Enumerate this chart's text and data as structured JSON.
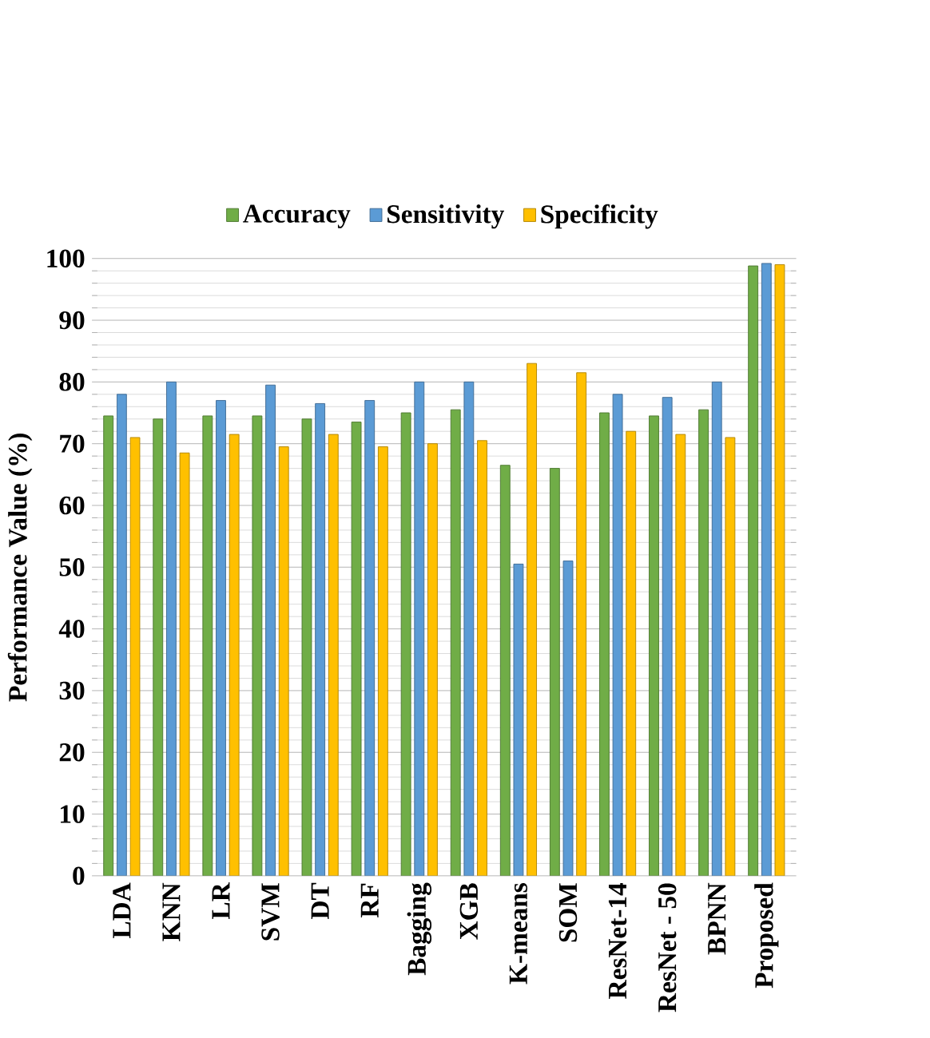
{
  "chart_data": {
    "type": "bar",
    "ylabel": "Performance Value (%)",
    "categories": [
      "LDA",
      "KNN",
      "LR",
      "SVM",
      "DT",
      "RF",
      "Bagging",
      "XGB",
      "K-means",
      "SOM",
      "ResNet-14",
      "ResNet - 50",
      "BPNN",
      "Proposed"
    ],
    "series": [
      {
        "name": "Accuracy",
        "color": "#70ad47",
        "values": [
          74.5,
          74,
          74.5,
          74.5,
          74,
          73.5,
          75,
          75.5,
          66.5,
          66,
          75,
          74.5,
          75.5,
          98.8
        ]
      },
      {
        "name": "Sensitivity",
        "color": "#5b9bd5",
        "values": [
          78,
          80,
          77,
          79.5,
          76.5,
          77,
          80,
          80,
          50.5,
          51,
          78,
          77.5,
          80,
          99.2
        ]
      },
      {
        "name": "Specificity",
        "color": "#ffc000",
        "values": [
          71,
          68.5,
          71.5,
          69.5,
          71.5,
          69.5,
          70,
          70.5,
          83,
          81.5,
          72,
          71.5,
          71,
          99
        ]
      }
    ],
    "ylim": [
      0,
      100
    ],
    "yticks": [
      0,
      10,
      20,
      30,
      40,
      50,
      60,
      70,
      80,
      90,
      100
    ],
    "grid": "y",
    "legend": "top"
  }
}
